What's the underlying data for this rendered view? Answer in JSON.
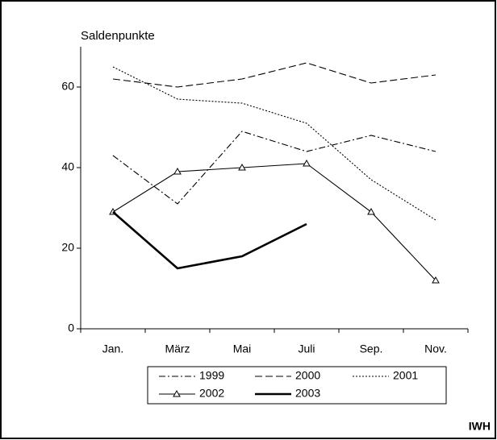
{
  "chart_data": {
    "type": "line",
    "y_label": "Saldenpunkte",
    "source": "IWH",
    "categories": [
      "Jan.",
      "März",
      "Mai",
      "Juli",
      "Sep.",
      "Nov."
    ],
    "ylim": [
      0,
      70
    ],
    "yticks": [
      0,
      20,
      40,
      60
    ],
    "series": [
      {
        "name": "1999",
        "color": "#000000",
        "style": "dashdot",
        "values": [
          43,
          31,
          49,
          44,
          48,
          44
        ]
      },
      {
        "name": "2000",
        "color": "#000000",
        "style": "dashed",
        "values": [
          62,
          60,
          62,
          66,
          61,
          63
        ]
      },
      {
        "name": "2001",
        "color": "#000000",
        "style": "dotted",
        "values": [
          65,
          57,
          56,
          51,
          37,
          27
        ]
      },
      {
        "name": "2002",
        "color": "#000000",
        "style": "solid",
        "marker": "triangle",
        "values": [
          29,
          39,
          40,
          41,
          29,
          12
        ]
      },
      {
        "name": "2003",
        "color": "#000000",
        "style": "bold",
        "values": [
          29,
          15,
          18,
          26,
          null,
          null
        ]
      }
    ]
  }
}
